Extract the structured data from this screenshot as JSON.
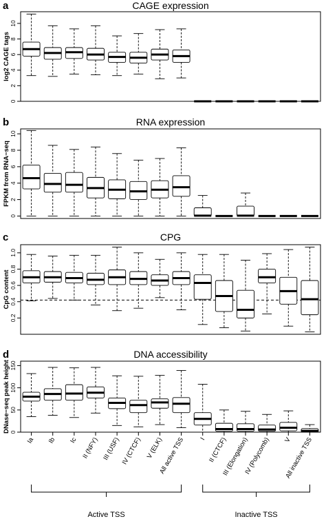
{
  "categories": [
    "Ia",
    "Ib",
    "Ic",
    "II (NFY)",
    "III (USF)",
    "IV (CTCF)",
    "V (ELK)",
    "All active TSS",
    "I",
    "II (CTCF)",
    "III (Elongation)",
    "IV (Polycomb)",
    "V",
    "All inactive TSS"
  ],
  "groups": [
    {
      "label": "Active TSS",
      "start": 0,
      "end": 7
    },
    {
      "label": "Inactive TSS",
      "start": 8,
      "end": 13
    }
  ],
  "chart_data": [
    {
      "type": "boxplot",
      "letter": "a",
      "title": "CAGE expression",
      "ylabel": "log2 CAGE tags",
      "ylim": [
        0,
        11.5
      ],
      "yticks": [
        0,
        2,
        4,
        6,
        8,
        10
      ],
      "ytick_labels": [
        "0",
        "2",
        "4",
        "6",
        "8",
        "10"
      ],
      "boxes": [
        {
          "whislo": 3.3,
          "q1": 5.8,
          "med": 6.7,
          "q3": 7.6,
          "whishi": 11.2
        },
        {
          "whislo": 3.2,
          "q1": 5.4,
          "med": 6.2,
          "q3": 6.9,
          "whishi": 9.7
        },
        {
          "whislo": 3.5,
          "q1": 5.5,
          "med": 6.3,
          "q3": 6.9,
          "whishi": 9.3
        },
        {
          "whislo": 3.4,
          "q1": 5.3,
          "med": 6.0,
          "q3": 6.8,
          "whishi": 9.7
        },
        {
          "whislo": 3.3,
          "q1": 5.0,
          "med": 5.7,
          "q3": 6.3,
          "whishi": 8.4
        },
        {
          "whislo": 3.5,
          "q1": 4.9,
          "med": 5.6,
          "q3": 6.3,
          "whishi": 8.7
        },
        {
          "whislo": 2.9,
          "q1": 5.3,
          "med": 6.0,
          "q3": 6.7,
          "whishi": 9.2
        },
        {
          "whislo": 3.0,
          "q1": 5.0,
          "med": 5.8,
          "q3": 6.6,
          "whishi": 9.3
        },
        {
          "whislo": 0,
          "q1": 0,
          "med": 0,
          "q3": 0,
          "whishi": 0
        },
        {
          "whislo": 0,
          "q1": 0,
          "med": 0,
          "q3": 0,
          "whishi": 0
        },
        {
          "whislo": 0,
          "q1": 0,
          "med": 0,
          "q3": 0,
          "whishi": 0
        },
        {
          "whislo": 0,
          "q1": 0,
          "med": 0,
          "q3": 0,
          "whishi": 0
        },
        {
          "whislo": 0,
          "q1": 0,
          "med": 0,
          "q3": 0,
          "whishi": 0
        },
        {
          "whislo": 0,
          "q1": 0,
          "med": 0,
          "q3": 0,
          "whishi": 0
        }
      ]
    },
    {
      "type": "boxplot",
      "letter": "b",
      "title": "RNA expression",
      "ylabel": "FPKM from RNA−seq",
      "ylim": [
        -0.3,
        10.6
      ],
      "yticks": [
        0,
        2,
        4,
        6,
        8,
        10
      ],
      "ytick_labels": [
        "0",
        "2",
        "4",
        "6",
        "8",
        "10"
      ],
      "boxes": [
        {
          "whislo": 0,
          "q1": 3.3,
          "med": 4.6,
          "q3": 6.2,
          "whishi": 10.4
        },
        {
          "whislo": 0,
          "q1": 2.9,
          "med": 3.9,
          "q3": 5.2,
          "whishi": 8.6
        },
        {
          "whislo": 0,
          "q1": 2.9,
          "med": 3.8,
          "q3": 5.3,
          "whishi": 8.1
        },
        {
          "whislo": 0,
          "q1": 2.2,
          "med": 3.4,
          "q3": 4.7,
          "whishi": 8.4
        },
        {
          "whislo": 0,
          "q1": 2.1,
          "med": 3.2,
          "q3": 4.4,
          "whishi": 7.6
        },
        {
          "whislo": 0,
          "q1": 2.0,
          "med": 3.0,
          "q3": 4.2,
          "whishi": 6.8
        },
        {
          "whislo": 0,
          "q1": 2.2,
          "med": 3.2,
          "q3": 4.3,
          "whishi": 7.0
        },
        {
          "whislo": 0,
          "q1": 2.4,
          "med": 3.5,
          "q3": 4.9,
          "whishi": 8.3
        },
        {
          "whislo": 0,
          "q1": 0,
          "med": 0.05,
          "q3": 1.0,
          "whishi": 2.5
        },
        {
          "whislo": 0,
          "q1": 0,
          "med": 0,
          "q3": 0,
          "whishi": 0
        },
        {
          "whislo": 0,
          "q1": 0,
          "med": 0.05,
          "q3": 1.2,
          "whishi": 2.8
        },
        {
          "whislo": 0,
          "q1": 0,
          "med": 0,
          "q3": 0,
          "whishi": 0
        },
        {
          "whislo": 0,
          "q1": 0,
          "med": 0,
          "q3": 0,
          "whishi": 0
        },
        {
          "whislo": 0,
          "q1": 0,
          "med": 0,
          "q3": 0,
          "whishi": 0
        }
      ]
    },
    {
      "type": "boxplot",
      "letter": "c",
      "title": "CPG",
      "ylabel": "CpG content",
      "ylim": [
        0,
        1.1
      ],
      "yticks": [
        0.2,
        0.4,
        0.6,
        0.8,
        1.0
      ],
      "ytick_labels": [
        "0.2",
        "0.4",
        "0.6",
        "0.8",
        "1.0"
      ],
      "reference_line": 0.42,
      "boxes": [
        {
          "whislo": 0.41,
          "q1": 0.63,
          "med": 0.7,
          "q3": 0.78,
          "whishi": 0.98
        },
        {
          "whislo": 0.44,
          "q1": 0.64,
          "med": 0.7,
          "q3": 0.77,
          "whishi": 0.96
        },
        {
          "whislo": 0.42,
          "q1": 0.63,
          "med": 0.69,
          "q3": 0.76,
          "whishi": 0.97
        },
        {
          "whislo": 0.36,
          "q1": 0.61,
          "med": 0.67,
          "q3": 0.75,
          "whishi": 0.97
        },
        {
          "whislo": 0.29,
          "q1": 0.61,
          "med": 0.7,
          "q3": 0.79,
          "whishi": 1.07
        },
        {
          "whislo": 0.32,
          "q1": 0.61,
          "med": 0.68,
          "q3": 0.77,
          "whishi": 1.0
        },
        {
          "whislo": 0.45,
          "q1": 0.6,
          "med": 0.66,
          "q3": 0.73,
          "whishi": 0.92
        },
        {
          "whislo": 0.3,
          "q1": 0.61,
          "med": 0.69,
          "q3": 0.77,
          "whishi": 1.0
        },
        {
          "whislo": 0.12,
          "q1": 0.43,
          "med": 0.63,
          "q3": 0.73,
          "whishi": 0.98
        },
        {
          "whislo": 0.08,
          "q1": 0.28,
          "med": 0.47,
          "q3": 0.66,
          "whishi": 0.98
        },
        {
          "whislo": 0.04,
          "q1": 0.2,
          "med": 0.3,
          "q3": 0.54,
          "whishi": 0.91
        },
        {
          "whislo": 0.25,
          "q1": 0.63,
          "med": 0.7,
          "q3": 0.8,
          "whishi": 0.99
        },
        {
          "whislo": 0.1,
          "q1": 0.37,
          "med": 0.53,
          "q3": 0.7,
          "whishi": 1.04
        },
        {
          "whislo": 0.03,
          "q1": 0.24,
          "med": 0.43,
          "q3": 0.66,
          "whishi": 1.07
        }
      ]
    },
    {
      "type": "boxplot",
      "letter": "d",
      "title": "DNA accessibility",
      "ylabel": "DNase−seq peak height",
      "ylim": [
        0,
        160
      ],
      "yticks": [
        0,
        50,
        100,
        150
      ],
      "ytick_labels": [
        "0",
        "50",
        "100",
        "150"
      ],
      "boxes": [
        {
          "whislo": 35,
          "q1": 70,
          "med": 80,
          "q3": 90,
          "whishi": 132
        },
        {
          "whislo": 38,
          "q1": 72,
          "med": 86,
          "q3": 98,
          "whishi": 146
        },
        {
          "whislo": 33,
          "q1": 72,
          "med": 87,
          "q3": 107,
          "whishi": 145
        },
        {
          "whislo": 43,
          "q1": 77,
          "med": 89,
          "q3": 102,
          "whishi": 146
        },
        {
          "whislo": 15,
          "q1": 53,
          "med": 66,
          "q3": 77,
          "whishi": 127
        },
        {
          "whislo": 12,
          "q1": 44,
          "med": 61,
          "q3": 72,
          "whishi": 126
        },
        {
          "whislo": 17,
          "q1": 54,
          "med": 67,
          "q3": 75,
          "whishi": 128
        },
        {
          "whislo": 10,
          "q1": 44,
          "med": 64,
          "q3": 78,
          "whishi": 139
        },
        {
          "whislo": 0,
          "q1": 16,
          "med": 30,
          "q3": 44,
          "whishi": 108
        },
        {
          "whislo": 0,
          "q1": 2,
          "med": 7,
          "q3": 20,
          "whishi": 50
        },
        {
          "whislo": 0,
          "q1": 2,
          "med": 7,
          "q3": 19,
          "whishi": 47
        },
        {
          "whislo": 0,
          "q1": 2,
          "med": 6,
          "q3": 16,
          "whishi": 40
        },
        {
          "whislo": 0,
          "q1": 3,
          "med": 10,
          "q3": 22,
          "whishi": 48
        },
        {
          "whislo": 0,
          "q1": 0,
          "med": 3,
          "q3": 8,
          "whishi": 17
        }
      ]
    }
  ]
}
